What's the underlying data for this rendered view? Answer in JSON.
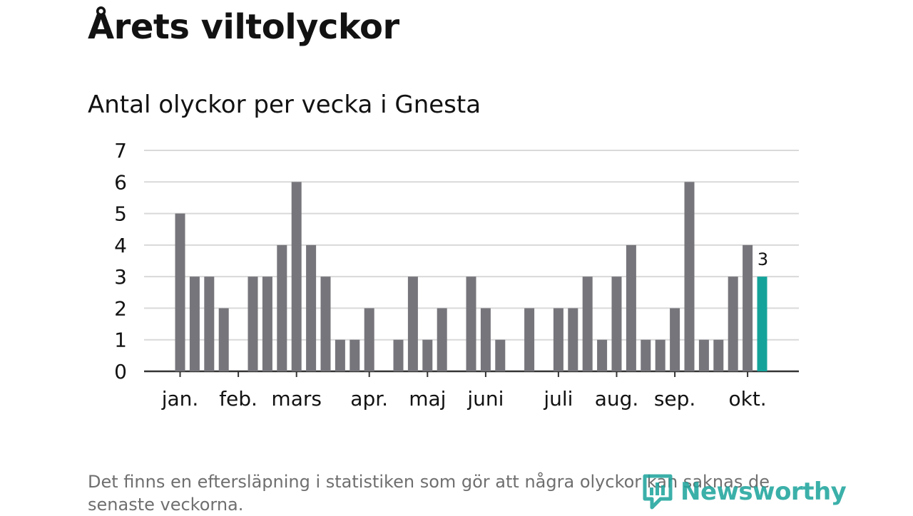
{
  "brand": {
    "name": "Newsworthy"
  },
  "footnote": "Det finns en eftersläpning i statistiken som gör att några olyckor kan saknas de senaste veckorna.",
  "colors": {
    "bar": "#76757b",
    "highlight": "#14a39b",
    "grid": "#d9d9d9",
    "axis": "#333333",
    "text": "#121212"
  },
  "chart_data": {
    "type": "bar",
    "title": "Årets viltolyckor",
    "subtitle": "Antal olyckor per vecka i Gnesta",
    "xlabel": "",
    "ylabel": "",
    "ylim": [
      0,
      7
    ],
    "yticks": [
      0,
      1,
      2,
      3,
      4,
      5,
      6,
      7
    ],
    "grid": true,
    "weeks": [
      1,
      2,
      3,
      4,
      5,
      6,
      7,
      8,
      9,
      10,
      11,
      12,
      13,
      14,
      15,
      16,
      17,
      18,
      19,
      20,
      21,
      22,
      23,
      24,
      25,
      26,
      27,
      28,
      29,
      30,
      31,
      32,
      33,
      34,
      35,
      36,
      37,
      38,
      39,
      40,
      41
    ],
    "values": [
      5,
      3,
      3,
      2,
      0,
      3,
      3,
      4,
      6,
      4,
      3,
      1,
      1,
      2,
      0,
      1,
      3,
      1,
      2,
      0,
      3,
      2,
      1,
      0,
      2,
      0,
      2,
      2,
      3,
      1,
      3,
      4,
      1,
      1,
      2,
      6,
      1,
      1,
      3,
      4,
      3
    ],
    "highlight_index": 40,
    "highlight_label": "3",
    "month_labels": [
      {
        "label": "jan.",
        "week": 1
      },
      {
        "label": "feb.",
        "week": 5
      },
      {
        "label": "mars",
        "week": 9
      },
      {
        "label": "apr.",
        "week": 14
      },
      {
        "label": "maj",
        "week": 18
      },
      {
        "label": "juni",
        "week": 22
      },
      {
        "label": "juli",
        "week": 27
      },
      {
        "label": "aug.",
        "week": 31
      },
      {
        "label": "sep.",
        "week": 35
      },
      {
        "label": "okt.",
        "week": 40
      }
    ]
  }
}
